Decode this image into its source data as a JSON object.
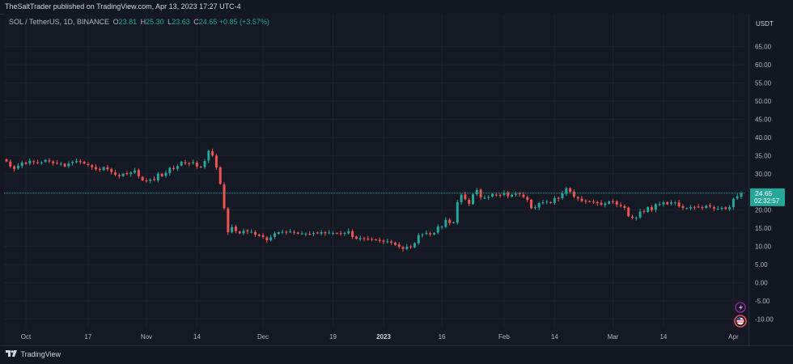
{
  "header": {
    "published": "TheSaltTrader published on TradingView.com, Apr 13, 2023 17:27 UTC-4"
  },
  "legend": {
    "symbol": "SOL / TetherUS, 1D, BINANCE",
    "open_label": "O",
    "open": "23.81",
    "high_label": "H",
    "high": "25.30",
    "low_label": "L",
    "low": "23.63",
    "close_label": "C",
    "close": "24.65",
    "change": "+0.85 (+3.57%)"
  },
  "price_axis": {
    "currency": "USDT",
    "last_price": "24.65",
    "countdown": "02:32:57"
  },
  "footer": {
    "logo_text": "TradingView"
  },
  "colors": {
    "up": "#26a69a",
    "down": "#ef5350",
    "background": "#131722",
    "grid": "#1e222d",
    "price_line": "#26a69a"
  },
  "icons": [
    "lightning-icon",
    "flag-icon",
    "tradingview-logo-icon"
  ],
  "chart_data": {
    "type": "candlestick",
    "interval": "1D",
    "ylabel": "USDT",
    "ylim": [
      -12,
      70
    ],
    "yticks": [
      "65.00",
      "60.00",
      "55.00",
      "50.00",
      "45.00",
      "40.00",
      "35.00",
      "30.00",
      "25.00",
      "20.00",
      "15.00",
      "10.00",
      "5.00",
      "0.00",
      "-5.00",
      "-10.00"
    ],
    "xticks": [
      {
        "label": "Oct",
        "date": "2022-10-01"
      },
      {
        "label": "17",
        "date": "2022-10-17"
      },
      {
        "label": "Nov",
        "date": "2022-11-01"
      },
      {
        "label": "14",
        "date": "2022-11-14"
      },
      {
        "label": "Dec",
        "date": "2022-12-01"
      },
      {
        "label": "19",
        "date": "2022-12-19"
      },
      {
        "label": "2023",
        "date": "2023-01-01"
      },
      {
        "label": "16",
        "date": "2023-01-16"
      },
      {
        "label": "Feb",
        "date": "2023-02-01"
      },
      {
        "label": "14",
        "date": "2023-02-14"
      },
      {
        "label": "Mar",
        "date": "2023-03-01"
      },
      {
        "label": "14",
        "date": "2023-03-14"
      },
      {
        "label": "Apr",
        "date": "2023-04-01"
      }
    ],
    "last_price": 24.65,
    "closes": [
      [
        33.4,
        32.0,
        31.3,
        32.2,
        33.1,
        32.7,
        33.6,
        33.2,
        33.0,
        33.1,
        33.8,
        33.4,
        32.9,
        32.9
      ],
      [
        32.8,
        32.0,
        32.8,
        33.3,
        33.5,
        33.2,
        32.8,
        32.4,
        31.8,
        31.2,
        31.1,
        31.8,
        31.2,
        30.5,
        29.7,
        29.3
      ],
      [
        30.0,
        30.0,
        30.3,
        30.9,
        29.3,
        28.2,
        28.0,
        28.4,
        28.3,
        30.0,
        29.3,
        30.3,
        31.6,
        31.3,
        32.1,
        33.3,
        32.9,
        32.8,
        33.2,
        32.0,
        31.8,
        33.5,
        36.3,
        35.0,
        31.7,
        27.2,
        20.5,
        13.9,
        15.3,
        14.2,
        13.6,
        14.3
      ],
      [
        14.1,
        14.0,
        13.2,
        12.9,
        12.6,
        11.7,
        12.5,
        13.6,
        13.9,
        14.0,
        13.9,
        14.1,
        13.8,
        13.5,
        13.6,
        13.5,
        13.4,
        13.7,
        13.6,
        13.9,
        13.6,
        13.8,
        13.7,
        13.6,
        13.4,
        13.7,
        14.2,
        12.6,
        12.1
      ],
      [
        12.3,
        12.1,
        11.9,
        12.0,
        11.8,
        11.5,
        11.3,
        11.4,
        11.0,
        10.4,
        9.9,
        9.3,
        9.9,
        9.9,
        10.9,
        13.1,
        13.3,
        13.7,
        13.3,
        13.7,
        15.5,
        15.4,
        17.3,
        16.4,
        16.6,
        22.2,
        24.2,
        23.0,
        21.7,
        24.3
      ],
      [
        25.5,
        23.5,
        23.4,
        23.6,
        24.4,
        24.2,
        24.1,
        24.7,
        23.8,
        24.2,
        24.5,
        24.4,
        23.6,
        22.8,
        20.5,
        20.8,
        21.9,
        22.1,
        22.3,
        22.0,
        23.3,
        23.1,
        24.6,
        26.0,
        25.0,
        23.7
      ],
      [
        23.2,
        22.5,
        22.3,
        22.4,
        22.2,
        21.9,
        21.5,
        21.8,
        22.4,
        22.2,
        21.5,
        21.1,
        20.6,
        18.3,
        17.9,
        17.9,
        19.6,
        19.6,
        20.8,
        20.0,
        21.6,
        21.6,
        22.1,
        21.6,
        22.1,
        22.1,
        21.0,
        20.6,
        20.5,
        20.8,
        20.8,
        20.9,
        20.6,
        21.2,
        21.0,
        20.4,
        20.4,
        20.6,
        20.3,
        20.8,
        23.1,
        23.8,
        24.65
      ]
    ]
  }
}
